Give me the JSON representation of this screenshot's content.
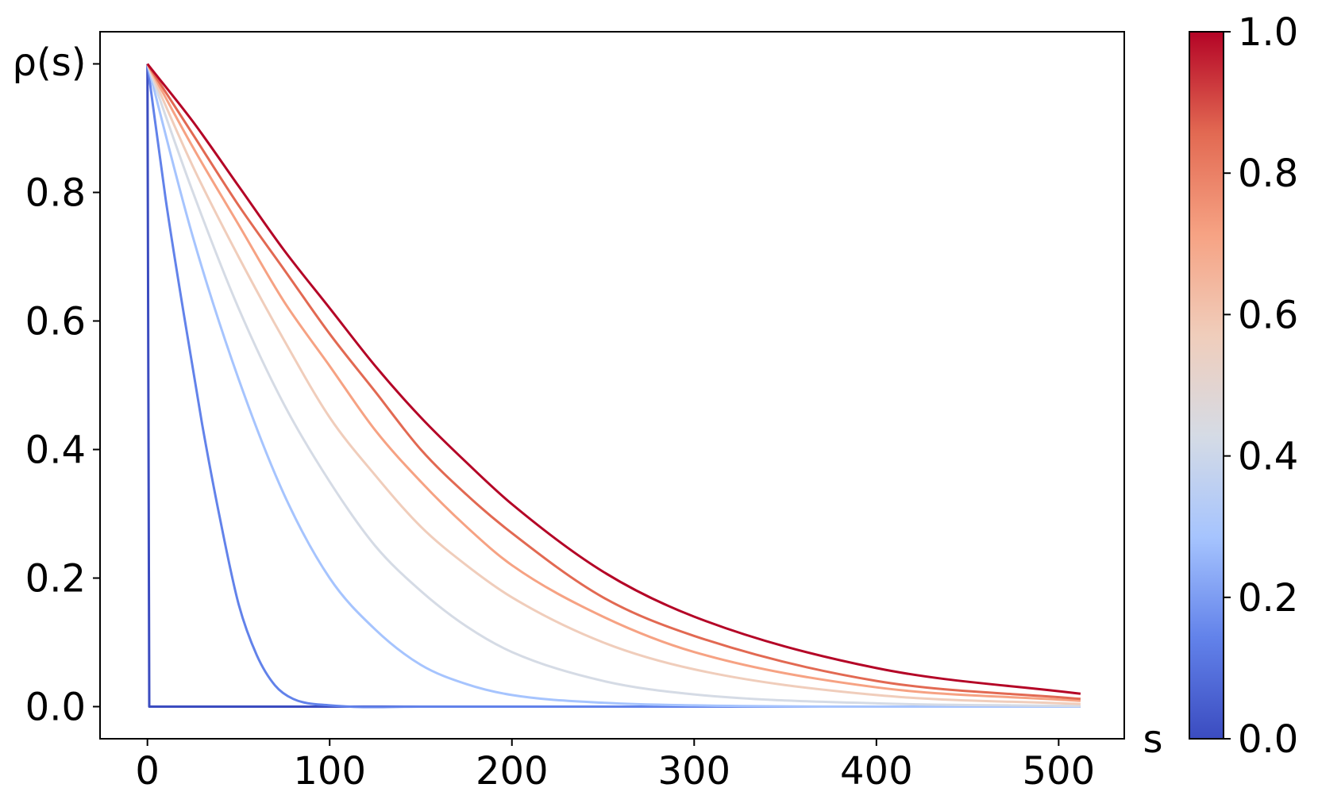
{
  "chart_data": {
    "type": "line",
    "title": "",
    "xlabel": "s",
    "ylabel": "ρ(s)",
    "xlim": [
      -26,
      536
    ],
    "ylim": [
      -0.05,
      1.05
    ],
    "x_ticks": [
      0,
      100,
      200,
      300,
      400,
      500
    ],
    "y_ticks": [
      0.0,
      0.2,
      0.4,
      0.6,
      0.8
    ],
    "grid": false,
    "x_range": [
      0,
      512
    ],
    "series": [
      {
        "color": "#3b4cc0",
        "points": [
          [
            0,
            1.0
          ],
          [
            1,
            0.0
          ],
          [
            512,
            0.0
          ]
        ]
      },
      {
        "color": "#6282ea",
        "points": [
          [
            0,
            1.0
          ],
          [
            10,
            0.79
          ],
          [
            20,
            0.61
          ],
          [
            30,
            0.44
          ],
          [
            40,
            0.29
          ],
          [
            50,
            0.16
          ],
          [
            60,
            0.08
          ],
          [
            70,
            0.033
          ],
          [
            80,
            0.012
          ],
          [
            100,
            0.002
          ],
          [
            150,
            0.0
          ],
          [
            512,
            0.0
          ]
        ]
      },
      {
        "color": "#a6c4fe",
        "points": [
          [
            0,
            1.0
          ],
          [
            25,
            0.73
          ],
          [
            50,
            0.51
          ],
          [
            75,
            0.33
          ],
          [
            100,
            0.2
          ],
          [
            125,
            0.12
          ],
          [
            150,
            0.065
          ],
          [
            175,
            0.035
          ],
          [
            200,
            0.018
          ],
          [
            250,
            0.006
          ],
          [
            300,
            0.002
          ],
          [
            400,
            0.0
          ],
          [
            512,
            0.0
          ]
        ]
      },
      {
        "color": "#d5dbe5",
        "points": [
          [
            0,
            1.0
          ],
          [
            25,
            0.8
          ],
          [
            50,
            0.62
          ],
          [
            75,
            0.47
          ],
          [
            100,
            0.35
          ],
          [
            125,
            0.25
          ],
          [
            150,
            0.18
          ],
          [
            175,
            0.125
          ],
          [
            200,
            0.085
          ],
          [
            250,
            0.04
          ],
          [
            300,
            0.019
          ],
          [
            400,
            0.005
          ],
          [
            512,
            0.001
          ]
        ]
      },
      {
        "color": "#f0cdbb",
        "points": [
          [
            0,
            1.0
          ],
          [
            25,
            0.84
          ],
          [
            50,
            0.7
          ],
          [
            75,
            0.57
          ],
          [
            100,
            0.45
          ],
          [
            125,
            0.36
          ],
          [
            150,
            0.28
          ],
          [
            175,
            0.22
          ],
          [
            200,
            0.17
          ],
          [
            250,
            0.1
          ],
          [
            300,
            0.058
          ],
          [
            400,
            0.018
          ],
          [
            512,
            0.004
          ]
        ]
      },
      {
        "color": "#f6a283",
        "points": [
          [
            0,
            1.0
          ],
          [
            25,
            0.87
          ],
          [
            50,
            0.75
          ],
          [
            75,
            0.63
          ],
          [
            100,
            0.53
          ],
          [
            125,
            0.43
          ],
          [
            150,
            0.35
          ],
          [
            175,
            0.28
          ],
          [
            200,
            0.22
          ],
          [
            250,
            0.14
          ],
          [
            300,
            0.085
          ],
          [
            400,
            0.03
          ],
          [
            512,
            0.009
          ]
        ]
      },
      {
        "color": "#e26952",
        "points": [
          [
            0,
            1.0
          ],
          [
            25,
            0.89
          ],
          [
            50,
            0.78
          ],
          [
            75,
            0.68
          ],
          [
            100,
            0.58
          ],
          [
            125,
            0.49
          ],
          [
            150,
            0.4
          ],
          [
            175,
            0.33
          ],
          [
            200,
            0.27
          ],
          [
            250,
            0.17
          ],
          [
            300,
            0.11
          ],
          [
            400,
            0.04
          ],
          [
            512,
            0.012
          ]
        ]
      },
      {
        "color": "#b40426",
        "points": [
          [
            0,
            1.0
          ],
          [
            25,
            0.91
          ],
          [
            50,
            0.81
          ],
          [
            75,
            0.71
          ],
          [
            100,
            0.62
          ],
          [
            125,
            0.53
          ],
          [
            150,
            0.45
          ],
          [
            175,
            0.38
          ],
          [
            200,
            0.315
          ],
          [
            250,
            0.21
          ],
          [
            300,
            0.14
          ],
          [
            400,
            0.06
          ],
          [
            512,
            0.02
          ]
        ]
      }
    ],
    "colorbar": {
      "cmap": "coolwarm",
      "range": [
        0.0,
        1.0
      ],
      "ticks": [
        0.0,
        0.2,
        0.4,
        0.6,
        0.8,
        1.0
      ],
      "stops": [
        "#3b4cc0",
        "#6282ea",
        "#a6c4fe",
        "#d5dbe5",
        "#f0cdbb",
        "#f6a283",
        "#e26952",
        "#b40426"
      ]
    }
  }
}
